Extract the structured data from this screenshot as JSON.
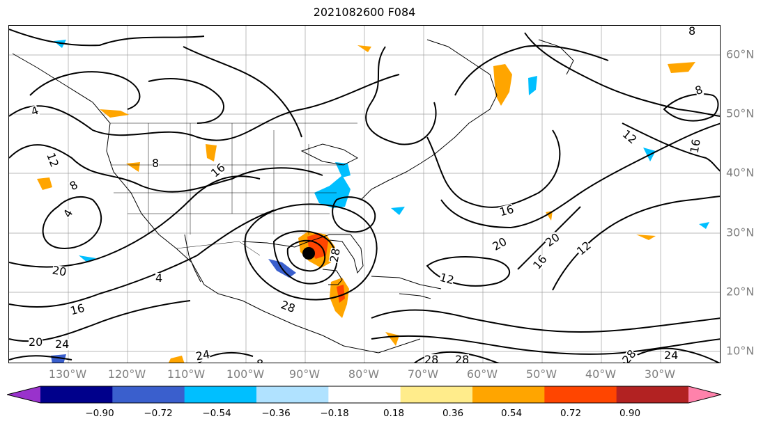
{
  "title": "2021082600 F084",
  "lon_labels": [
    "130°W",
    "120°W",
    "110°W",
    "100°W",
    "90°W",
    "80°W",
    "70°W",
    "60°W",
    "50°W",
    "40°W",
    "30°W"
  ],
  "lat_labels": [
    "60°N",
    "50°N",
    "40°N",
    "30°N",
    "20°N",
    "10°N"
  ],
  "contour_labels": [
    "4",
    "8",
    "12",
    "16",
    "20",
    "24",
    "28"
  ],
  "colorbar": {
    "ticks": [
      "−0.90",
      "−0.72",
      "−0.54",
      "−0.36",
      "−0.18",
      "0.18",
      "0.36",
      "0.54",
      "0.72",
      "0.90"
    ],
    "colors": [
      "#9932cc",
      "#00008b",
      "#3a5fcd",
      "#00bfff",
      "#b0e2ff",
      "#ffffff",
      "#ffec8b",
      "#ffa500",
      "#ff4500",
      "#b22222",
      "#ff82ab"
    ]
  },
  "colors": {
    "contour": "#000000",
    "grid": "#a0a0a0",
    "axis_label": "#808080"
  }
}
